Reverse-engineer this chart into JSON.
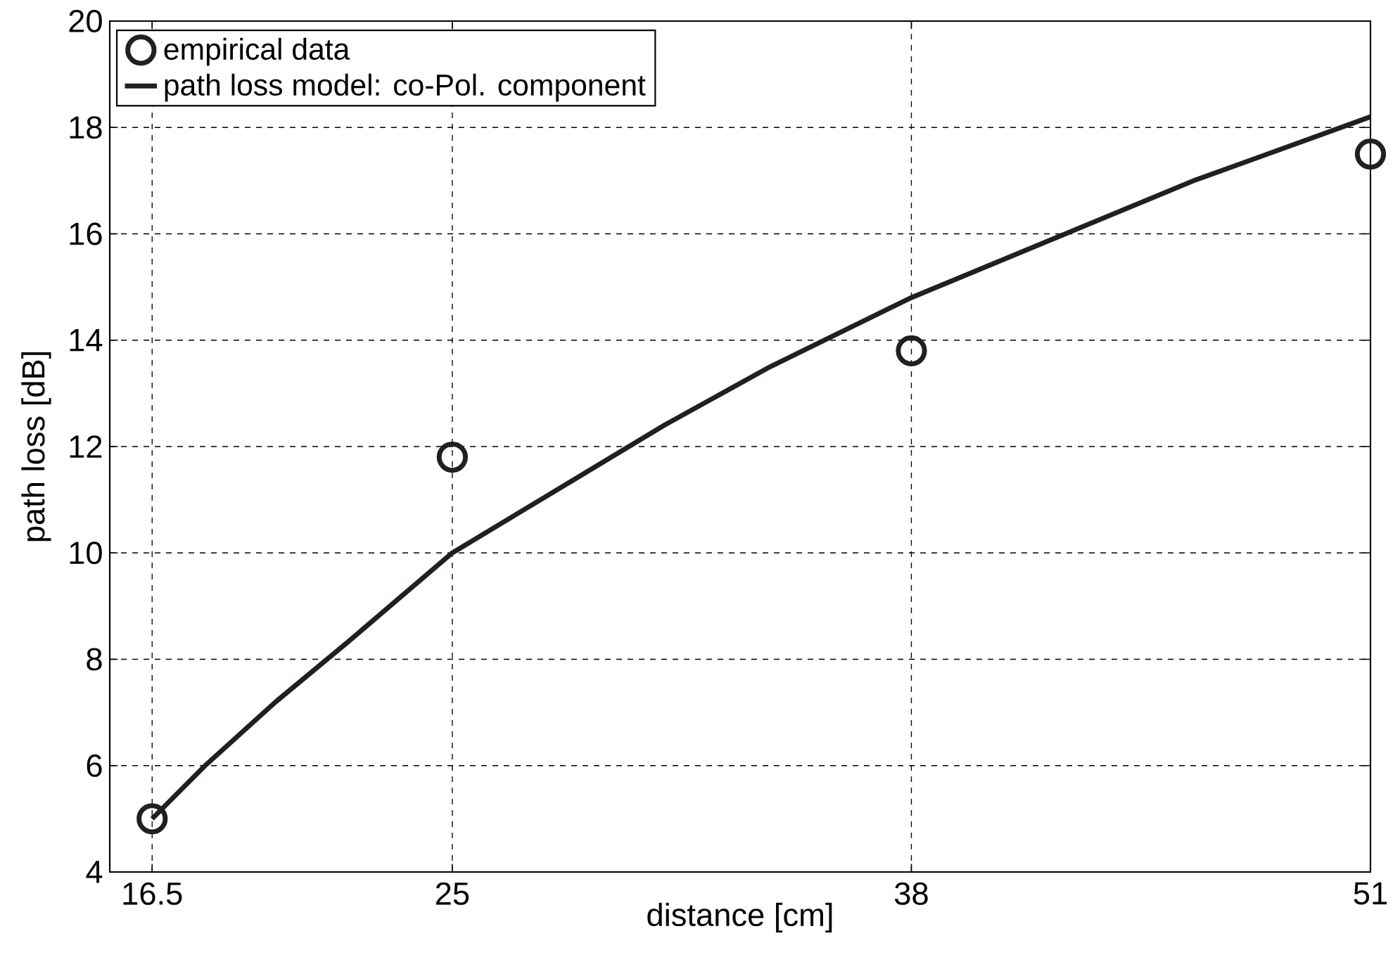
{
  "chart_data": {
    "type": "line",
    "xlabel": "distance [cm]",
    "ylabel": "path loss [dB]",
    "xlim": [
      15.3,
      51
    ],
    "xticks": [
      16.5,
      25,
      38,
      51
    ],
    "ylim": [
      4,
      20
    ],
    "yticks": [
      4,
      6,
      8,
      10,
      12,
      14,
      16,
      18,
      20
    ],
    "grid": true,
    "legend": "top left",
    "series": [
      {
        "name": "empirical data",
        "type": "scatter",
        "marker": "circle",
        "color": "#231f20",
        "x": [
          16.5,
          25,
          38,
          51
        ],
        "values": [
          5.0,
          11.8,
          13.8,
          17.5
        ]
      },
      {
        "name": "path loss model: co-Pol. component",
        "marker": "none",
        "line_style": "solid",
        "color": "#231f20",
        "x": [
          16.5,
          18,
          20,
          22,
          25,
          28,
          31,
          34,
          38,
          42,
          46,
          51
        ],
        "values": [
          5.0,
          6.0,
          7.2,
          8.3,
          10.0,
          11.2,
          12.4,
          13.5,
          14.8,
          15.9,
          17.0,
          18.2
        ]
      }
    ]
  }
}
